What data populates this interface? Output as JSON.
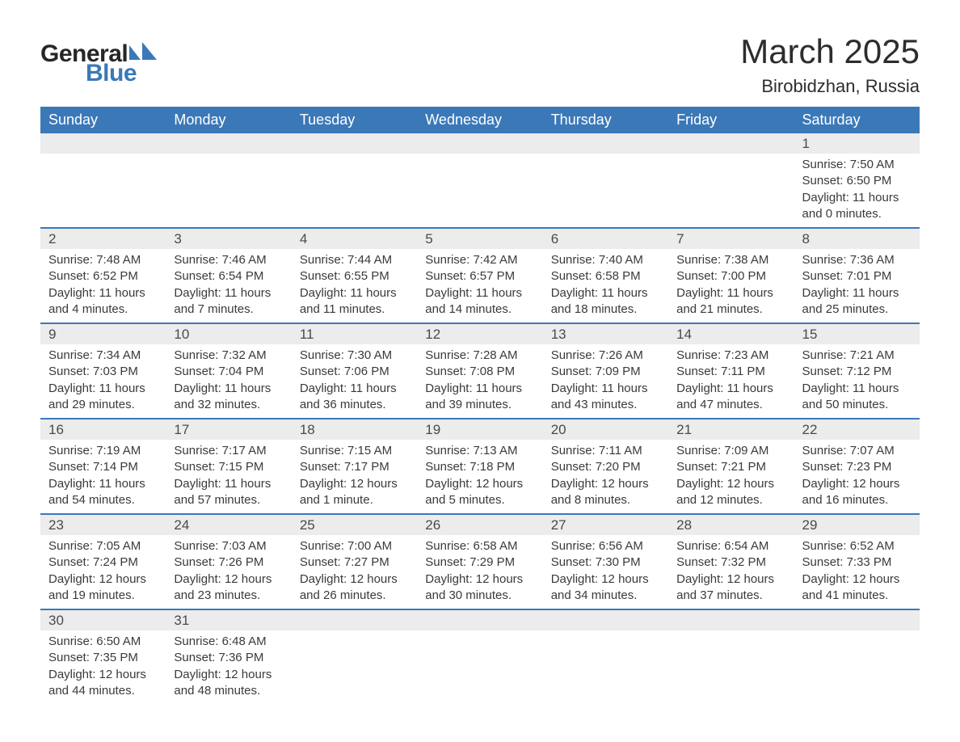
{
  "logo": {
    "text1": "General",
    "text2": "Blue",
    "icon_color": "#3b78b8"
  },
  "header": {
    "title": "March 2025",
    "location": "Birobidzhan, Russia"
  },
  "style": {
    "header_bg": "#3b78b8",
    "header_fg": "#ffffff",
    "daynum_bg": "#ececec",
    "row_divider": "#3b78b8",
    "text_color": "#3a3a3a",
    "title_fontsize": 42,
    "location_fontsize": 22,
    "dayhead_fontsize": 18,
    "daynum_fontsize": 17,
    "cell_fontsize": 15
  },
  "day_headers": [
    "Sunday",
    "Monday",
    "Tuesday",
    "Wednesday",
    "Thursday",
    "Friday",
    "Saturday"
  ],
  "labels": {
    "sunrise": "Sunrise:",
    "sunset": "Sunset:",
    "daylight": "Daylight:"
  },
  "weeks": [
    [
      null,
      null,
      null,
      null,
      null,
      null,
      {
        "n": "1",
        "sunrise": "7:50 AM",
        "sunset": "6:50 PM",
        "daylight": "11 hours and 0 minutes."
      }
    ],
    [
      {
        "n": "2",
        "sunrise": "7:48 AM",
        "sunset": "6:52 PM",
        "daylight": "11 hours and 4 minutes."
      },
      {
        "n": "3",
        "sunrise": "7:46 AM",
        "sunset": "6:54 PM",
        "daylight": "11 hours and 7 minutes."
      },
      {
        "n": "4",
        "sunrise": "7:44 AM",
        "sunset": "6:55 PM",
        "daylight": "11 hours and 11 minutes."
      },
      {
        "n": "5",
        "sunrise": "7:42 AM",
        "sunset": "6:57 PM",
        "daylight": "11 hours and 14 minutes."
      },
      {
        "n": "6",
        "sunrise": "7:40 AM",
        "sunset": "6:58 PM",
        "daylight": "11 hours and 18 minutes."
      },
      {
        "n": "7",
        "sunrise": "7:38 AM",
        "sunset": "7:00 PM",
        "daylight": "11 hours and 21 minutes."
      },
      {
        "n": "8",
        "sunrise": "7:36 AM",
        "sunset": "7:01 PM",
        "daylight": "11 hours and 25 minutes."
      }
    ],
    [
      {
        "n": "9",
        "sunrise": "7:34 AM",
        "sunset": "7:03 PM",
        "daylight": "11 hours and 29 minutes."
      },
      {
        "n": "10",
        "sunrise": "7:32 AM",
        "sunset": "7:04 PM",
        "daylight": "11 hours and 32 minutes."
      },
      {
        "n": "11",
        "sunrise": "7:30 AM",
        "sunset": "7:06 PM",
        "daylight": "11 hours and 36 minutes."
      },
      {
        "n": "12",
        "sunrise": "7:28 AM",
        "sunset": "7:08 PM",
        "daylight": "11 hours and 39 minutes."
      },
      {
        "n": "13",
        "sunrise": "7:26 AM",
        "sunset": "7:09 PM",
        "daylight": "11 hours and 43 minutes."
      },
      {
        "n": "14",
        "sunrise": "7:23 AM",
        "sunset": "7:11 PM",
        "daylight": "11 hours and 47 minutes."
      },
      {
        "n": "15",
        "sunrise": "7:21 AM",
        "sunset": "7:12 PM",
        "daylight": "11 hours and 50 minutes."
      }
    ],
    [
      {
        "n": "16",
        "sunrise": "7:19 AM",
        "sunset": "7:14 PM",
        "daylight": "11 hours and 54 minutes."
      },
      {
        "n": "17",
        "sunrise": "7:17 AM",
        "sunset": "7:15 PM",
        "daylight": "11 hours and 57 minutes."
      },
      {
        "n": "18",
        "sunrise": "7:15 AM",
        "sunset": "7:17 PM",
        "daylight": "12 hours and 1 minute."
      },
      {
        "n": "19",
        "sunrise": "7:13 AM",
        "sunset": "7:18 PM",
        "daylight": "12 hours and 5 minutes."
      },
      {
        "n": "20",
        "sunrise": "7:11 AM",
        "sunset": "7:20 PM",
        "daylight": "12 hours and 8 minutes."
      },
      {
        "n": "21",
        "sunrise": "7:09 AM",
        "sunset": "7:21 PM",
        "daylight": "12 hours and 12 minutes."
      },
      {
        "n": "22",
        "sunrise": "7:07 AM",
        "sunset": "7:23 PM",
        "daylight": "12 hours and 16 minutes."
      }
    ],
    [
      {
        "n": "23",
        "sunrise": "7:05 AM",
        "sunset": "7:24 PM",
        "daylight": "12 hours and 19 minutes."
      },
      {
        "n": "24",
        "sunrise": "7:03 AM",
        "sunset": "7:26 PM",
        "daylight": "12 hours and 23 minutes."
      },
      {
        "n": "25",
        "sunrise": "7:00 AM",
        "sunset": "7:27 PM",
        "daylight": "12 hours and 26 minutes."
      },
      {
        "n": "26",
        "sunrise": "6:58 AM",
        "sunset": "7:29 PM",
        "daylight": "12 hours and 30 minutes."
      },
      {
        "n": "27",
        "sunrise": "6:56 AM",
        "sunset": "7:30 PM",
        "daylight": "12 hours and 34 minutes."
      },
      {
        "n": "28",
        "sunrise": "6:54 AM",
        "sunset": "7:32 PM",
        "daylight": "12 hours and 37 minutes."
      },
      {
        "n": "29",
        "sunrise": "6:52 AM",
        "sunset": "7:33 PM",
        "daylight": "12 hours and 41 minutes."
      }
    ],
    [
      {
        "n": "30",
        "sunrise": "6:50 AM",
        "sunset": "7:35 PM",
        "daylight": "12 hours and 44 minutes."
      },
      {
        "n": "31",
        "sunrise": "6:48 AM",
        "sunset": "7:36 PM",
        "daylight": "12 hours and 48 minutes."
      },
      null,
      null,
      null,
      null,
      null
    ]
  ]
}
